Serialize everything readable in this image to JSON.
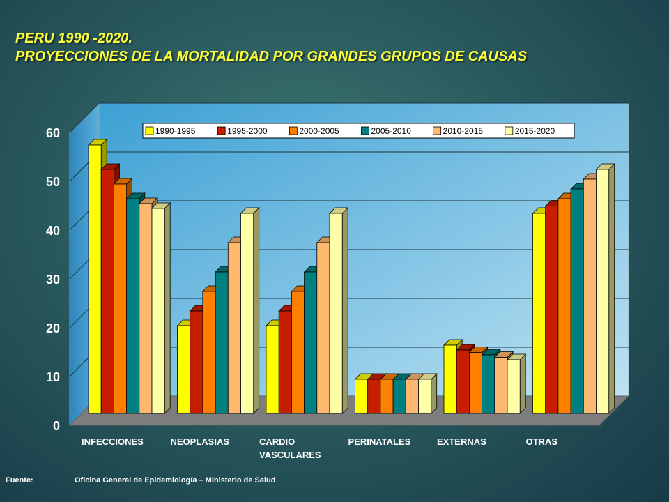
{
  "title_line1": "PERU 1990 -2020.",
  "title_line2": "PROYECCIONES DE LA MORTALIDAD POR GRANDES GRUPOS DE CAUSAS",
  "footer": {
    "label": "Fuente:",
    "text": "Oficina General de Epidemiología – Ministerio de Salud"
  },
  "chart_data": {
    "type": "bar",
    "title": "",
    "xlabel": "",
    "ylabel": "",
    "ylim": [
      0,
      60
    ],
    "yticks": [
      0,
      10,
      20,
      30,
      40,
      50,
      60
    ],
    "grid": true,
    "legend_position": "top",
    "categories": [
      "INFECCIONES",
      "NEOPLASIAS",
      "CARDIO VASCULARES",
      "PERINATALES",
      "EXTERNAS",
      "OTRAS"
    ],
    "category_lines": [
      [
        "INFECCIONES"
      ],
      [
        "NEOPLASIAS"
      ],
      [
        "CARDIO",
        "VASCULARES"
      ],
      [
        "PERINATALES"
      ],
      [
        "EXTERNAS"
      ],
      [
        "OTRAS"
      ]
    ],
    "series": [
      {
        "name": "1990-1995",
        "color": "#ffff00",
        "values": [
          55,
          18,
          18,
          7,
          14,
          41
        ]
      },
      {
        "name": "1995-2000",
        "color": "#c81e00",
        "values": [
          50,
          21,
          21,
          7,
          13,
          42.5
        ]
      },
      {
        "name": "2000-2005",
        "color": "#ff7f00",
        "values": [
          47,
          25,
          25,
          7,
          12.5,
          44
        ]
      },
      {
        "name": "2005-2010",
        "color": "#008080",
        "values": [
          44,
          29,
          29,
          7,
          12,
          46
        ]
      },
      {
        "name": "2010-2015",
        "color": "#ffb870",
        "values": [
          43,
          35,
          35,
          7,
          11.5,
          48
        ]
      },
      {
        "name": "2015-2020",
        "color": "#ffffa8",
        "values": [
          42,
          41,
          41,
          7,
          11,
          50
        ]
      }
    ]
  }
}
